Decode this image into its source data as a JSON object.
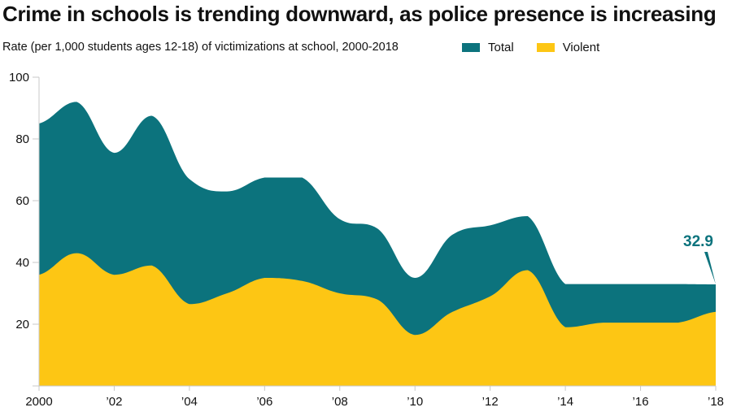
{
  "title": "Crime in schools is trending downward, as police presence is increasing",
  "subtitle": "Rate (per 1,000 students ages 12-18) of victimizations at school, 2000-2018",
  "legend": [
    {
      "label": "Total",
      "color": "#0c737d"
    },
    {
      "label": "Violent",
      "color": "#fdc614"
    }
  ],
  "chart_data": {
    "type": "area",
    "title": "Crime in schools is trending downward, as police presence is increasing",
    "subtitle": "Rate (per 1,000 students ages 12-18) of victimizations at school, 2000-2018",
    "xlabel": "",
    "ylabel": "",
    "x": [
      2000,
      2001,
      2002,
      2003,
      2004,
      2005,
      2006,
      2007,
      2008,
      2009,
      2010,
      2011,
      2012,
      2013,
      2014,
      2015,
      2016,
      2017,
      2018
    ],
    "xlim": [
      2000,
      2018
    ],
    "ylim": [
      0,
      100
    ],
    "x_ticks": [
      2000,
      2002,
      2004,
      2006,
      2008,
      2010,
      2012,
      2014,
      2016,
      2018
    ],
    "x_tick_labels": [
      "2000",
      "’02",
      "’04",
      "’06",
      "’08",
      "’10",
      "’12",
      "’14",
      "’16",
      "’18"
    ],
    "y_ticks": [
      20,
      40,
      60,
      80,
      100
    ],
    "y_tick_labels": [
      "20",
      "40",
      "60",
      "80",
      "100"
    ],
    "grid": false,
    "legend_position": "top-right",
    "series": [
      {
        "name": "Total",
        "color": "#0c737d",
        "values": [
          85,
          92,
          75.5,
          87.5,
          67,
          63,
          67.5,
          67.5,
          54,
          51,
          35,
          49,
          52,
          55,
          33,
          33,
          33,
          33,
          32.9
        ]
      },
      {
        "name": "Violent",
        "color": "#fdc614",
        "values": [
          36,
          43,
          36,
          39,
          26.5,
          30,
          35,
          34,
          30,
          28,
          16.5,
          24,
          29,
          37.5,
          19,
          20.5,
          20.5,
          20.5,
          24
        ]
      }
    ],
    "annotations": [
      {
        "text": "32.9",
        "x": 2018,
        "y": 32.9,
        "series": "Total",
        "color": "#0c737d"
      }
    ]
  }
}
